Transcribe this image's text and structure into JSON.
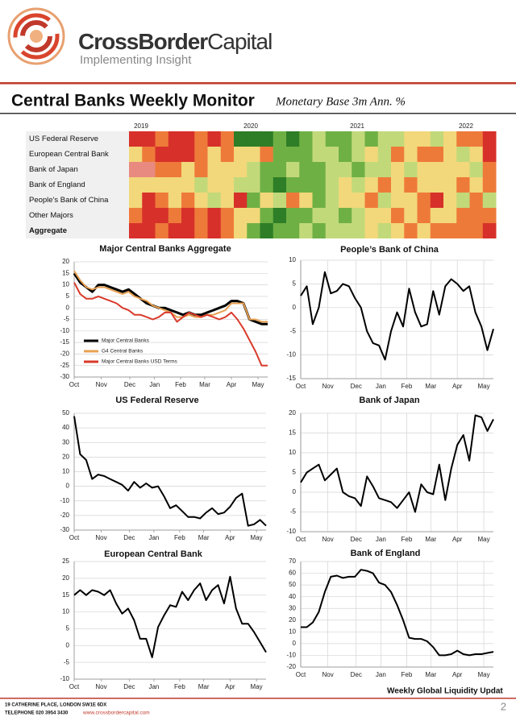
{
  "header": {
    "brand_bold": "CrossBorder",
    "brand_light": "Capital",
    "tagline": "Implementing Insight"
  },
  "title": "Central Banks Weekly Monitor",
  "subtitle": "Monetary Base 3m Ann. %",
  "heatmap": {
    "years": [
      "2019",
      "2020",
      "2021",
      "2022"
    ],
    "rows": [
      {
        "name": "US Federal Reserve",
        "colors": [
          "#d7302a",
          "#d7302a",
          "#ee7a3a",
          "#d7302a",
          "#d7302a",
          "#ee7a3a",
          "#d7302a",
          "#ee7a3a",
          "#2e7d27",
          "#2e7d27",
          "#2e7d27",
          "#6fb044",
          "#2e7d27",
          "#6fb044",
          "#c2d97a",
          "#6fb044",
          "#6fb044",
          "#c2d97a",
          "#6fb044",
          "#c2d97a",
          "#c2d97a",
          "#f2d87a",
          "#f2d87a",
          "#c2d97a",
          "#f2d87a",
          "#ee7a3a",
          "#ee7a3a",
          "#d7302a"
        ]
      },
      {
        "name": "European Central Bank",
        "colors": [
          "#f2d87a",
          "#ee7a3a",
          "#d7302a",
          "#d7302a",
          "#d7302a",
          "#ee7a3a",
          "#f2d87a",
          "#ee7a3a",
          "#f2d87a",
          "#f2d87a",
          "#ee7a3a",
          "#6fb044",
          "#6fb044",
          "#6fb044",
          "#c2d97a",
          "#c2d97a",
          "#6fb044",
          "#c2d97a",
          "#f2d87a",
          "#c2d97a",
          "#ee7a3a",
          "#f2d87a",
          "#ee7a3a",
          "#ee7a3a",
          "#f2d87a",
          "#c2d97a",
          "#f2d87a",
          "#d7302a"
        ]
      },
      {
        "name": "Bank of Japan",
        "colors": [
          "#e88a80",
          "#e88a80",
          "#ee7a3a",
          "#ee7a3a",
          "#f2d87a",
          "#ee7a3a",
          "#f2d87a",
          "#f2d87a",
          "#f2d87a",
          "#c2d97a",
          "#6fb044",
          "#6fb044",
          "#c2d97a",
          "#6fb044",
          "#6fb044",
          "#c2d97a",
          "#c2d97a",
          "#6fb044",
          "#c2d97a",
          "#c2d97a",
          "#f2d87a",
          "#c2d97a",
          "#f2d87a",
          "#f2d87a",
          "#f2d87a",
          "#f2d87a",
          "#c2d97a",
          "#ee7a3a"
        ]
      },
      {
        "name": "Bank of England",
        "colors": [
          "#f2d87a",
          "#f2d87a",
          "#f2d87a",
          "#f2d87a",
          "#f2d87a",
          "#c2d97a",
          "#f2d87a",
          "#f2d87a",
          "#c2d97a",
          "#c2d97a",
          "#6fb044",
          "#2e7d27",
          "#6fb044",
          "#6fb044",
          "#6fb044",
          "#c2d97a",
          "#f2d87a",
          "#c2d97a",
          "#f2d87a",
          "#ee7a3a",
          "#f2d87a",
          "#ee7a3a",
          "#f2d87a",
          "#f2d87a",
          "#f2d87a",
          "#ee7a3a",
          "#f2d87a",
          "#ee7a3a"
        ]
      },
      {
        "name": "People's Bank of China",
        "colors": [
          "#f2d87a",
          "#d7302a",
          "#ee7a3a",
          "#f2d87a",
          "#ee7a3a",
          "#f2d87a",
          "#c2d97a",
          "#f2d87a",
          "#d7302a",
          "#6fb044",
          "#f2d87a",
          "#c2d97a",
          "#ee7a3a",
          "#f2d87a",
          "#6fb044",
          "#c2d97a",
          "#f2d87a",
          "#f2d87a",
          "#ee7a3a",
          "#c2d97a",
          "#f2d87a",
          "#f2d87a",
          "#ee7a3a",
          "#d7302a",
          "#f2d87a",
          "#c2d97a",
          "#ee7a3a",
          "#c2d97a"
        ]
      },
      {
        "name": "Other Majors",
        "colors": [
          "#ee7a3a",
          "#d7302a",
          "#d7302a",
          "#ee7a3a",
          "#d7302a",
          "#ee7a3a",
          "#d7302a",
          "#ee7a3a",
          "#f2d87a",
          "#f2d87a",
          "#6fb044",
          "#2e7d27",
          "#6fb044",
          "#6fb044",
          "#c2d97a",
          "#c2d97a",
          "#6fb044",
          "#c2d97a",
          "#f2d87a",
          "#f2d87a",
          "#ee7a3a",
          "#f2d87a",
          "#ee7a3a",
          "#f2d87a",
          "#f2d87a",
          "#ee7a3a",
          "#ee7a3a",
          "#ee7a3a"
        ]
      },
      {
        "name": "Aggregate",
        "colors": [
          "#d7302a",
          "#d7302a",
          "#ee7a3a",
          "#d7302a",
          "#d7302a",
          "#ee7a3a",
          "#d7302a",
          "#ee7a3a",
          "#f2d87a",
          "#6fb044",
          "#2e7d27",
          "#6fb044",
          "#6fb044",
          "#c2d97a",
          "#6fb044",
          "#c2d97a",
          "#c2d97a",
          "#c2d97a",
          "#f2d87a",
          "#c2d97a",
          "#f2d87a",
          "#ee7a3a",
          "#f2d87a",
          "#ee7a3a",
          "#ee7a3a",
          "#ee7a3a",
          "#ee7a3a",
          "#d7302a"
        ]
      }
    ]
  },
  "chart_data": [
    {
      "type": "line",
      "title": "Major Central Banks Aggregate",
      "x": [
        0,
        1,
        2,
        3,
        4,
        5,
        6,
        7,
        8,
        9,
        10,
        11,
        12,
        13,
        14,
        15,
        16,
        17,
        18,
        19,
        20,
        21,
        22,
        23,
        24,
        25,
        26,
        27,
        28,
        29,
        30,
        31,
        32
      ],
      "xlim": [
        0,
        32
      ],
      "xticks": [
        {
          "value": 0,
          "label": "Oct"
        },
        {
          "value": 4.5,
          "label": "Nov"
        },
        {
          "value": 9.2,
          "label": "Dec"
        },
        {
          "value": 13.3,
          "label": "Jan"
        },
        {
          "value": 17.6,
          "label": "Feb"
        },
        {
          "value": 21.6,
          "label": "Mar"
        },
        {
          "value": 26,
          "label": "Apr"
        },
        {
          "value": 30.4,
          "label": "May"
        }
      ],
      "ylim": [
        -30,
        20
      ],
      "yticks": [
        -30,
        -25,
        -20,
        -15,
        -10,
        -5,
        0,
        5,
        10,
        15,
        20
      ],
      "grid": true,
      "xgrid": false,
      "legend": "lower left",
      "series": [
        {
          "name": "Major Central Banks",
          "color": "#000000",
          "values": [
            15,
            11,
            9,
            7,
            10,
            10,
            9,
            8,
            7,
            8,
            6,
            4,
            2,
            1,
            0,
            0,
            -1,
            -2,
            -3,
            -2,
            -3,
            -3,
            -2,
            -1,
            0,
            1,
            3,
            3,
            2,
            -5,
            -6,
            -7,
            -7
          ]
        },
        {
          "name": "G4 Central Banks",
          "color": "#e8a050",
          "values": [
            16,
            12,
            9,
            8,
            9,
            9,
            8,
            7,
            6,
            7,
            5,
            4,
            3,
            1,
            0,
            -1,
            -2,
            -4,
            -4,
            -3,
            -4,
            -4,
            -3,
            -3,
            -2,
            -1,
            2,
            2,
            2,
            -5,
            -5,
            -6,
            -6
          ]
        },
        {
          "name": "Major Central Banks USD Terms",
          "color": "#d93a2b",
          "values": [
            11,
            6,
            4,
            4,
            5,
            4,
            3,
            2,
            0,
            -1,
            -3,
            -3,
            -4,
            -5,
            -4,
            -2,
            -2,
            -6,
            -4,
            -2,
            -3,
            -4,
            -3,
            -4,
            -5,
            -4,
            -2,
            -5,
            -9,
            -14,
            -19,
            -25,
            -25
          ]
        }
      ]
    },
    {
      "type": "line",
      "title": "People’s Bank of China",
      "x": [
        0,
        1,
        2,
        3,
        4,
        5,
        6,
        7,
        8,
        9,
        10,
        11,
        12,
        13,
        14,
        15,
        16,
        17,
        18,
        19,
        20,
        21,
        22,
        23,
        24,
        25,
        26,
        27,
        28,
        29,
        30,
        31,
        32
      ],
      "xlim": [
        0,
        32
      ],
      "xticks": [
        {
          "value": 0,
          "label": "Oct"
        },
        {
          "value": 4.5,
          "label": "Nov"
        },
        {
          "value": 9.2,
          "label": "Dec"
        },
        {
          "value": 13.3,
          "label": "Jan"
        },
        {
          "value": 17.6,
          "label": "Feb"
        },
        {
          "value": 21.6,
          "label": "Mar"
        },
        {
          "value": 26,
          "label": "Apr"
        },
        {
          "value": 30.4,
          "label": "May"
        }
      ],
      "ylim": [
        -15,
        10
      ],
      "yticks": [
        -15,
        -10,
        -5,
        0,
        5,
        10
      ],
      "grid": true,
      "xgrid": true,
      "series": [
        {
          "color": "#000000",
          "values": [
            2.5,
            4.5,
            -3.5,
            0,
            7.5,
            3,
            3.5,
            5,
            4.5,
            2,
            0,
            -5,
            -7.5,
            -8,
            -11,
            -5,
            -1,
            -4,
            4,
            -1,
            -4,
            -3.5,
            3.5,
            -1.5,
            4.5,
            6,
            5,
            3.5,
            4.5,
            -1,
            -4,
            -9,
            -4.5
          ]
        }
      ]
    },
    {
      "type": "line",
      "title": "US Federal Reserve",
      "x": [
        0,
        1,
        2,
        3,
        4,
        5,
        6,
        7,
        8,
        9,
        10,
        11,
        12,
        13,
        14,
        15,
        16,
        17,
        18,
        19,
        20,
        21,
        22,
        23,
        24,
        25,
        26,
        27,
        28,
        29,
        30,
        31,
        32
      ],
      "xlim": [
        0,
        32
      ],
      "xticks": [
        {
          "value": 0,
          "label": "Oct"
        },
        {
          "value": 4.5,
          "label": "Nov"
        },
        {
          "value": 9.2,
          "label": "Dec"
        },
        {
          "value": 13.3,
          "label": "Jan"
        },
        {
          "value": 17.6,
          "label": "Feb"
        },
        {
          "value": 21.6,
          "label": "Mar"
        },
        {
          "value": 26,
          "label": "Apr"
        },
        {
          "value": 30.4,
          "label": "May"
        }
      ],
      "ylim": [
        -30,
        50
      ],
      "yticks": [
        -30,
        -20,
        -10,
        0,
        10,
        20,
        30,
        40,
        50
      ],
      "grid": true,
      "xgrid": false,
      "series": [
        {
          "color": "#000000",
          "values": [
            48,
            22,
            18,
            5,
            8,
            7,
            5,
            3,
            1,
            -3,
            3,
            -1,
            2,
            -1,
            0,
            -7,
            -15,
            -13,
            -17,
            -21,
            -21,
            -22,
            -18,
            -15,
            -19,
            -18,
            -14,
            -8,
            -5,
            -27,
            -26,
            -23,
            -27
          ]
        }
      ]
    },
    {
      "type": "line",
      "title": "Bank of Japan",
      "x": [
        0,
        1,
        2,
        3,
        4,
        5,
        6,
        7,
        8,
        9,
        10,
        11,
        12,
        13,
        14,
        15,
        16,
        17,
        18,
        19,
        20,
        21,
        22,
        23,
        24,
        25,
        26,
        27,
        28,
        29,
        30,
        31,
        32
      ],
      "xlim": [
        0,
        32
      ],
      "xticks": [
        {
          "value": 0,
          "label": "Oct"
        },
        {
          "value": 4.5,
          "label": "Nov"
        },
        {
          "value": 9.2,
          "label": "Dec"
        },
        {
          "value": 13.3,
          "label": "Jan"
        },
        {
          "value": 17.6,
          "label": "Feb"
        },
        {
          "value": 21.6,
          "label": "Mar"
        },
        {
          "value": 26,
          "label": "Apr"
        },
        {
          "value": 30.4,
          "label": "May"
        }
      ],
      "ylim": [
        -10,
        20
      ],
      "yticks": [
        -10,
        -5,
        0,
        5,
        10,
        15,
        20
      ],
      "grid": true,
      "xgrid": true,
      "series": [
        {
          "color": "#000000",
          "values": [
            2.5,
            5,
            6,
            7,
            3,
            4.5,
            6,
            0,
            -1,
            -1.5,
            -3.5,
            4,
            1.5,
            -1.5,
            -2,
            -2.5,
            -4,
            -2,
            0,
            -5,
            2,
            0,
            -0.5,
            7,
            -2,
            6,
            12,
            14.5,
            8,
            19.5,
            19,
            15.5,
            18.5
          ]
        }
      ]
    },
    {
      "type": "line",
      "title": "European Central Bank",
      "x": [
        0,
        1,
        2,
        3,
        4,
        5,
        6,
        7,
        8,
        9,
        10,
        11,
        12,
        13,
        14,
        15,
        16,
        17,
        18,
        19,
        20,
        21,
        22,
        23,
        24,
        25,
        26,
        27,
        28,
        29,
        30,
        31,
        32
      ],
      "xlim": [
        0,
        32
      ],
      "xticks": [
        {
          "value": 0,
          "label": "Oct"
        },
        {
          "value": 4.5,
          "label": "Nov"
        },
        {
          "value": 9.2,
          "label": "Dec"
        },
        {
          "value": 13.3,
          "label": "Jan"
        },
        {
          "value": 17.6,
          "label": "Feb"
        },
        {
          "value": 21.6,
          "label": "Mar"
        },
        {
          "value": 26,
          "label": "Apr"
        },
        {
          "value": 30.4,
          "label": "May"
        }
      ],
      "ylim": [
        -10,
        25
      ],
      "yticks": [
        -10,
        -5,
        0,
        5,
        10,
        15,
        20,
        25
      ],
      "grid": true,
      "xgrid": false,
      "series": [
        {
          "color": "#000000",
          "values": [
            15,
            16.5,
            15,
            16.5,
            16,
            15,
            16.5,
            12.5,
            9.5,
            11,
            7.5,
            2,
            2,
            -3.5,
            5.5,
            9,
            12,
            11.5,
            16,
            13.5,
            16.5,
            18.5,
            13.5,
            16.5,
            18,
            12.5,
            20.5,
            11,
            6.5,
            6.5,
            4,
            1,
            -2
          ]
        }
      ]
    },
    {
      "type": "line",
      "title": "Bank of England",
      "x": [
        0,
        1,
        2,
        3,
        4,
        5,
        6,
        7,
        8,
        9,
        10,
        11,
        12,
        13,
        14,
        15,
        16,
        17,
        18,
        19,
        20,
        21,
        22,
        23,
        24,
        25,
        26,
        27,
        28,
        29,
        30,
        31,
        32
      ],
      "xlim": [
        0,
        32
      ],
      "xticks": [
        {
          "value": 0,
          "label": "Oct"
        },
        {
          "value": 4.5,
          "label": "Nov"
        },
        {
          "value": 9.2,
          "label": "Dec"
        },
        {
          "value": 13.3,
          "label": "Jan"
        },
        {
          "value": 17.6,
          "label": "Feb"
        },
        {
          "value": 21.6,
          "label": "Mar"
        },
        {
          "value": 26,
          "label": "Apr"
        },
        {
          "value": 30.4,
          "label": "May"
        }
      ],
      "ylim": [
        -20,
        70
      ],
      "yticks": [
        -20,
        -10,
        0,
        10,
        20,
        30,
        40,
        50,
        60,
        70
      ],
      "grid": true,
      "xgrid": true,
      "series": [
        {
          "color": "#000000",
          "values": [
            14,
            14,
            18,
            27,
            44,
            57,
            58,
            56,
            57,
            57,
            63,
            62,
            60,
            52,
            50,
            44,
            33,
            20,
            5,
            4,
            4,
            2,
            -3,
            -10,
            -10,
            -9,
            -6,
            -9,
            -10,
            -9,
            -9,
            -8,
            -7
          ]
        }
      ]
    }
  ],
  "footer": {
    "report": "Weekly Global Liquidity Updat",
    "address": "19 CATHERINE PLACE, LONDON SW1E 6DX",
    "telephone": "TELEPHONE  020 3954 3430",
    "website": "www.crossbordercapital.com",
    "page": "2"
  }
}
